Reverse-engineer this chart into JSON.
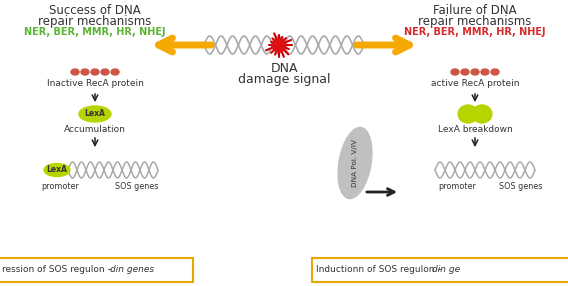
{
  "bg_color": "#ffffff",
  "left_title_line1": "Success of DNA",
  "left_title_line2": "repair mechanisms",
  "left_mechanisms": "NER, BER, MMR, HR, NHEJ",
  "left_mechanisms_color": "#5ab534",
  "right_title_line1": "Failure of DNA",
  "right_title_line2": "repair mechanisms",
  "right_mechanisms": "NER, BER, MMR, HR, NHEJ",
  "right_mechanisms_color": "#d62b2b",
  "center_label_line1": "DNA",
  "center_label_line2": "damage signal",
  "arrow_color": "#f5a800",
  "left_inactive_text": "Inactive RecA protein",
  "left_lexa_accum": "Accumulation",
  "left_lexa_label": "LexA",
  "left_promoter": "promoter",
  "left_sos": "SOS genes",
  "right_active_text": "active RecA protein",
  "right_lexa_text": "LexA breakdown",
  "right_promoter": "promoter",
  "right_sos": "SOS genes",
  "dna_pol_text": "DNA Pol. V/IV",
  "lexa_color": "#b8d400",
  "protein_color": "#cc5544",
  "dna_color": "#aaaaaa",
  "bottom_left_text": "ression of SOS regulon – ",
  "bottom_left_italic": "din genes",
  "bottom_right_text": "Inductionn of SOS regulon – ",
  "bottom_right_italic": "din ge",
  "bottom_box_color": "#e8a800",
  "arrow_dark": "#222222",
  "text_color": "#333333"
}
